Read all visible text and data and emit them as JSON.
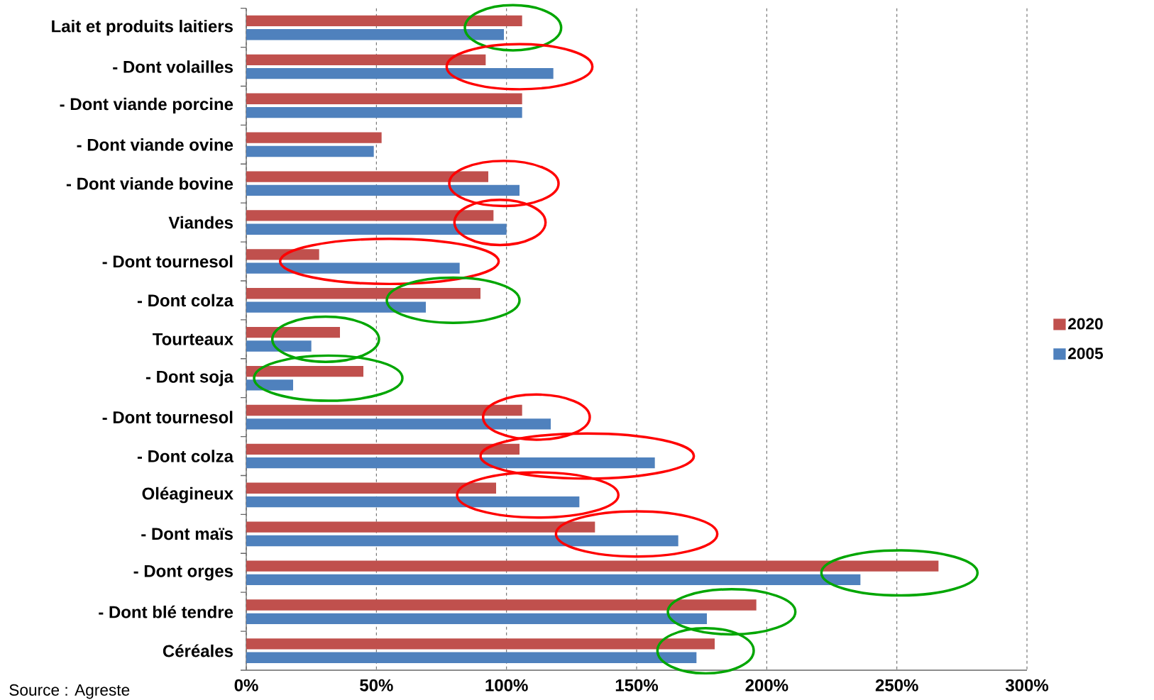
{
  "chart_data": {
    "type": "bar",
    "orientation": "horizontal",
    "categories": [
      "Lait et produits laitiers",
      "- Dont volailles",
      "- Dont viande porcine",
      "- Dont viande ovine",
      "- Dont viande bovine",
      "Viandes",
      "- Dont tournesol",
      "- Dont colza",
      "Tourteaux",
      "- Dont soja",
      "- Dont tournesol",
      "- Dont colza",
      "Oléagineux",
      "- Dont maïs",
      "- Dont orges",
      "- Dont blé tendre",
      "Céréales"
    ],
    "series": [
      {
        "name": "2020",
        "color": "#c0504d",
        "values": [
          106,
          92,
          106,
          52,
          93,
          95,
          28,
          90,
          36,
          45,
          106,
          105,
          96,
          134,
          266,
          196,
          180
        ]
      },
      {
        "name": "2005",
        "color": "#4f81bd",
        "values": [
          99,
          118,
          106,
          49,
          105,
          100,
          82,
          69,
          25,
          18,
          117,
          157,
          128,
          166,
          236,
          177,
          173
        ]
      }
    ],
    "xlim": [
      0,
      300
    ],
    "xticks": [
      {
        "value": 0,
        "label": "0%"
      },
      {
        "value": 50,
        "label": "50%"
      },
      {
        "value": 100,
        "label": "100%"
      },
      {
        "value": 150,
        "label": "150%"
      },
      {
        "value": 200,
        "label": "200%"
      },
      {
        "value": 250,
        "label": "250%"
      },
      {
        "value": 300,
        "label": "300%"
      }
    ],
    "grid": "x",
    "legend": "right",
    "annotations": [
      "Source : Agreste"
    ]
  }
}
